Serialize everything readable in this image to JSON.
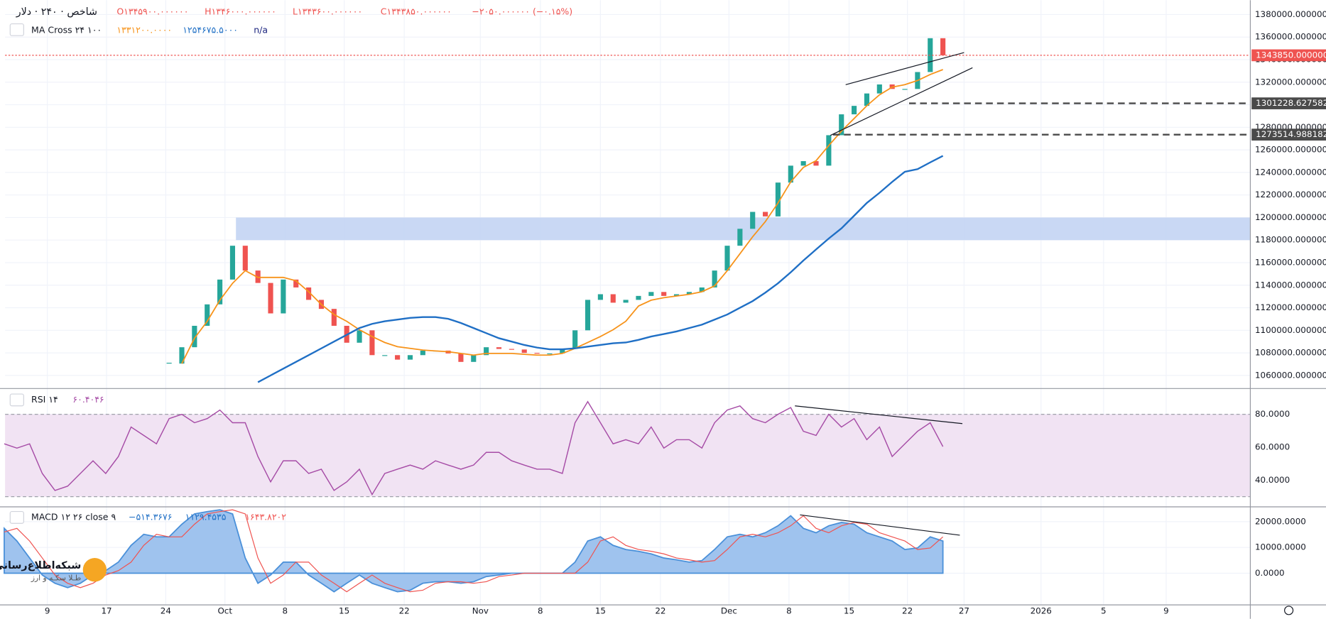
{
  "header": {
    "symbol": "شاخص · ۲۴۰ · دلار",
    "ohlc": [
      "O۱۳۴۵۹۰۰.۰۰۰۰۰۰",
      "H۱۳۴۶۰۰۰.۰۰۰۰۰۰",
      "L۱۳۴۳۶۰۰.۰۰۰۰۰۰",
      "C۱۳۴۳۸۵۰.۰۰۰۰۰۰"
    ],
    "change": "−۲۰۵۰.۰۰۰۰۰۰ (−۰.۱۵%)",
    "indicator": "MA Cross ۲۴ ۱۰۰",
    "ma_values": [
      "۱۳۳۱۲۰۰.۰۰۰۰",
      "۱۲۵۴۶۷۵.۵۰۰۰",
      "n/a"
    ],
    "watermark": [
      "شبکه‌اطلاع‌رسانی",
      "طـلا سکـه و ارز"
    ]
  },
  "time_axis": [
    "9",
    "17",
    "24",
    "Oct",
    "8",
    "15",
    "22",
    "Nov",
    "8",
    "15",
    "22",
    "Dec",
    "8",
    "15",
    "22",
    "27",
    "2026",
    "5",
    "9"
  ],
  "chart_data": [
    {
      "type": "candlestick",
      "up_color": "#26a69a",
      "down_color": "#ef5350",
      "grid": true,
      "close": [
        null,
        null,
        null,
        null,
        null,
        null,
        null,
        null,
        null,
        null,
        null,
        null,
        null,
        1070500,
        1085000,
        1104000,
        1123000,
        1145000,
        1175000,
        1153000,
        1142000,
        1115000,
        1145000,
        1138000,
        1127000,
        1119000,
        1104000,
        1089000,
        1100000,
        1078000,
        1078000,
        1074000,
        1078000,
        1082000,
        1082000,
        1079500,
        1072000,
        1078000,
        1085000,
        1083500,
        1083000,
        1080000,
        1079500,
        1079500,
        1083500,
        1100000,
        1127000,
        1132000,
        1124500,
        1127000,
        1130500,
        1134000,
        1130500,
        1132000,
        1134000,
        1138000,
        1153000,
        1175000,
        1190000,
        1205000,
        1201000,
        1231000,
        1246000,
        1250000,
        1246000,
        1273000,
        1291500,
        1299000,
        1310000,
        1318000,
        1314000,
        1314000,
        1329000,
        1359000,
        1343850
      ],
      "series": [
        {
          "color": "#f7931a",
          "values": [
            null,
            null,
            null,
            null,
            null,
            null,
            null,
            null,
            null,
            null,
            null,
            null,
            null,
            null,
            1070500,
            1093000,
            1108000,
            1126700,
            1141700,
            1152900,
            1146900,
            1146900,
            1146900,
            1143900,
            1134200,
            1122900,
            1114000,
            1108000,
            1100500,
            1094500,
            1089200,
            1085500,
            1084000,
            1082500,
            1081700,
            1081000,
            1079500,
            1078000,
            1079500,
            1079500,
            1079500,
            1078700,
            1078000,
            1078000,
            1079500,
            1084000,
            1089200,
            1094500,
            1100500,
            1108000,
            1121500,
            1126700,
            1128900,
            1130400,
            1131900,
            1134200,
            1139400,
            1152900,
            1167900,
            1182900,
            1196400,
            1212900,
            1231600,
            1244400,
            1250400,
            1263800,
            1276600,
            1287800,
            1299100,
            1308800,
            1315600,
            1317800,
            1321500,
            1326800,
            1331200
          ]
        },
        {
          "color": "#1f6fc5",
          "values": [
            null,
            null,
            null,
            null,
            null,
            null,
            null,
            null,
            null,
            null,
            null,
            null,
            null,
            null,
            null,
            null,
            null,
            null,
            null,
            null,
            1054000,
            1060000,
            1066000,
            1072000,
            1078000,
            1084000,
            1090000,
            1096000,
            1102000,
            1105700,
            1108000,
            1109500,
            1111000,
            1111700,
            1111700,
            1110200,
            1106500,
            1102000,
            1097500,
            1093000,
            1090000,
            1087000,
            1084700,
            1083200,
            1083200,
            1084000,
            1085500,
            1087000,
            1088500,
            1089200,
            1091500,
            1094500,
            1096700,
            1099000,
            1102000,
            1105000,
            1109500,
            1114000,
            1120000,
            1125900,
            1133400,
            1141700,
            1151400,
            1161900,
            1171700,
            1181400,
            1190400,
            1201600,
            1212900,
            1221900,
            1231600,
            1240600,
            1242900,
            1248900,
            1254675.5
          ]
        }
      ],
      "ylim": [
        1048760,
        1392740
      ],
      "yticks": [
        {
          "value": 1060000,
          "label": "1060000.0000000"
        },
        {
          "value": 1080000,
          "label": "1080000.0000000"
        },
        {
          "value": 1100000,
          "label": "1100000.0000000"
        },
        {
          "value": 1120000,
          "label": "1120000.0000000"
        },
        {
          "value": 1140000,
          "label": "1140000.0000000"
        },
        {
          "value": 1160000,
          "label": "1160000.0000000"
        },
        {
          "value": 1180000,
          "label": "1180000.0000000"
        },
        {
          "value": 1200000,
          "label": "1200000.0000000"
        },
        {
          "value": 1220000,
          "label": "1220000.0000000"
        },
        {
          "value": 1240000,
          "label": "1240000.0000000"
        },
        {
          "value": 1260000,
          "label": "1260000.0000000"
        },
        {
          "value": 1280000,
          "label": "1280000.0000000"
        },
        {
          "value": 1300000,
          "label": "1300000.0000000"
        },
        {
          "value": 1320000,
          "label": "1320000.0000000"
        },
        {
          "value": 1340000,
          "label": "1340000.0000000"
        },
        {
          "value": 1360000,
          "label": "1360000.0000000"
        },
        {
          "value": 1380000,
          "label": "1380000.0000000"
        }
      ],
      "zone": {
        "range": [
          1180000,
          1200000
        ],
        "color": "#c3d4f3"
      },
      "price_labels": [
        {
          "value": 1343850,
          "label": "1343850.0000000",
          "color": "#ef5350"
        },
        {
          "value": 1301228.6275822,
          "label": "1301228.6275822",
          "color": "#4a4a4a"
        },
        {
          "value": 1273514.988182,
          "label": "1273514.9881820",
          "color": "#4a4a4a"
        }
      ]
    },
    {
      "type": "line",
      "title": "RSI ۱۴",
      "legend_values": [
        "۶۰.۴۰۴۶"
      ],
      "grid": true,
      "series": [
        {
          "color": "#a64ca6",
          "values": [
            62.1,
            59.5,
            62.1,
            44.1,
            33.8,
            36.4,
            44.1,
            51.8,
            44.1,
            54.4,
            72.3,
            67.2,
            62.1,
            77.4,
            80,
            74.9,
            77.4,
            82.6,
            74.9,
            74.9,
            54.4,
            39,
            51.8,
            51.8,
            44.1,
            46.7,
            33.8,
            39,
            46.7,
            31.3,
            44.1,
            46.7,
            49.2,
            46.7,
            51.8,
            49.2,
            46.7,
            49.2,
            56.9,
            56.9,
            51.8,
            49.2,
            46.7,
            46.7,
            44.1,
            74.9,
            87.7,
            74.9,
            62.1,
            64.6,
            62.1,
            72.3,
            59.5,
            64.6,
            64.6,
            59.5,
            74.9,
            82.6,
            85.1,
            77.4,
            74.9,
            80,
            84.1,
            69.7,
            67.2,
            80,
            72.3,
            77.4,
            64.6,
            72.3,
            54.4,
            62.1,
            69.7,
            74.9,
            60.4046
          ]
        }
      ],
      "ylim": [
        24.6,
        95.4
      ],
      "yticks": [
        {
          "value": 40,
          "label": "40.0000"
        },
        {
          "value": 60,
          "label": "60.0000"
        },
        {
          "value": 80,
          "label": "80.0000"
        }
      ],
      "band": [
        30,
        80
      ],
      "band_color": "#f1e3f3"
    },
    {
      "type": "area",
      "title": "MACD ۱۲ ۲۶ close ۹",
      "legend_values": [
        "−۵۱۴.۳۶۷۶",
        "۱۱۲۹.۴۵۳۵",
        "۱۶۴۳.۸۲۰۲"
      ],
      "grid": true,
      "series": [
        {
          "color": "#4a90d9",
          "values": [
            17400,
            12500,
            5900,
            -700,
            -3900,
            -5600,
            -3900,
            -700,
            1000,
            4300,
            10800,
            15100,
            14100,
            14100,
            19000,
            23000,
            23900,
            24600,
            23000,
            5900,
            -3900,
            -700,
            4300,
            4300,
            -700,
            -3900,
            -7200,
            -3900,
            -700,
            -3900,
            -5600,
            -7200,
            -6600,
            -3900,
            -3300,
            -3300,
            -3900,
            -3300,
            -1300,
            -700,
            0,
            0,
            0,
            0,
            0,
            4300,
            12500,
            14100,
            10800,
            9200,
            8500,
            7500,
            5900,
            5200,
            4300,
            4900,
            9200,
            14100,
            15100,
            14100,
            15700,
            18400,
            22300,
            17400,
            15700,
            18400,
            19700,
            19000,
            15700,
            14100,
            12500,
            9200,
            9800,
            14100,
            12500
          ]
        },
        {
          "color": "#ef5350",
          "values": [
            16000,
            17400,
            12500,
            5900,
            -700,
            -3900,
            -5600,
            -3900,
            -700,
            1000,
            4300,
            10800,
            15100,
            14100,
            14100,
            19000,
            23000,
            23900,
            24600,
            23000,
            5900,
            -3900,
            -700,
            4300,
            4300,
            -700,
            -3900,
            -7200,
            -3900,
            -700,
            -3900,
            -5600,
            -7200,
            -6600,
            -3900,
            -3300,
            -3300,
            -3900,
            -3300,
            -1300,
            -700,
            0,
            0,
            0,
            0,
            0,
            4300,
            12500,
            14100,
            10800,
            9200,
            8500,
            7500,
            5900,
            5200,
            4300,
            4900,
            9200,
            14100,
            15100,
            14100,
            15700,
            18400,
            22300,
            17400,
            15700,
            18400,
            19700,
            19000,
            15700,
            14100,
            12500,
            9200,
            9800,
            14100
          ]
        }
      ],
      "ylim": [
        -12131,
        25574
      ],
      "yticks": [
        {
          "value": 0,
          "label": "0.0000"
        },
        {
          "value": 10000,
          "label": "10000.0000"
        },
        {
          "value": 20000,
          "label": "20000.0000"
        }
      ]
    }
  ]
}
